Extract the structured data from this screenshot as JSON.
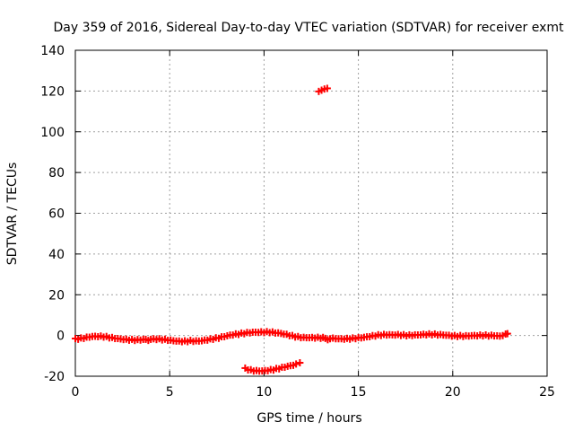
{
  "chart_data": {
    "type": "scatter",
    "title": "Day 359 of 2016, Sidereal Day-to-day VTEC variation (SDTVAR) for receiver exmt",
    "xlabel": "GPS time / hours",
    "ylabel": "SDTVAR / TECUs",
    "xlim": [
      0,
      25
    ],
    "ylim": [
      -20,
      140
    ],
    "xticks": [
      "0",
      "5",
      "10",
      "15",
      "20",
      "25"
    ],
    "yticks": [
      "-20",
      "0",
      "20",
      "40",
      "60",
      "80",
      "100",
      "120",
      "140"
    ],
    "grid": true,
    "marker": "plus",
    "color": "#ff0000",
    "series": [
      {
        "name": "main track",
        "points": [
          [
            0.0,
            -1.5
          ],
          [
            0.3,
            -1.2
          ],
          [
            0.6,
            -0.8
          ],
          [
            0.9,
            -0.5
          ],
          [
            1.2,
            -0.6
          ],
          [
            1.5,
            -0.8
          ],
          [
            1.8,
            -1.2
          ],
          [
            2.1,
            -1.5
          ],
          [
            2.4,
            -1.7
          ],
          [
            2.7,
            -1.8
          ],
          [
            3.0,
            -1.9
          ],
          [
            3.3,
            -2.0
          ],
          [
            3.6,
            -1.9
          ],
          [
            4.0,
            -1.9
          ],
          [
            4.3,
            -2.0
          ],
          [
            4.6,
            -2.2
          ],
          [
            4.9,
            -2.4
          ],
          [
            5.2,
            -2.6
          ],
          [
            5.5,
            -2.7
          ],
          [
            5.8,
            -2.6
          ],
          [
            6.1,
            -2.4
          ],
          [
            6.4,
            -2.6
          ],
          [
            6.7,
            -2.6
          ],
          [
            7.0,
            -2.3
          ],
          [
            7.3,
            -1.9
          ],
          [
            7.6,
            -1.4
          ],
          [
            7.9,
            -0.6
          ],
          [
            8.2,
            0.2
          ],
          [
            8.5,
            0.8
          ],
          [
            8.8,
            1.2
          ],
          [
            9.1,
            1.5
          ],
          [
            9.4,
            1.6
          ],
          [
            9.7,
            1.5
          ],
          [
            10.0,
            1.4
          ],
          [
            10.3,
            1.4
          ],
          [
            10.6,
            1.2
          ],
          [
            10.9,
            1.0
          ],
          [
            11.2,
            0.6
          ],
          [
            11.5,
            0.0
          ],
          [
            11.8,
            -0.5
          ],
          [
            12.1,
            -0.9
          ],
          [
            12.4,
            -1.1
          ],
          [
            12.7,
            -1.3
          ],
          [
            13.0,
            -1.4
          ],
          [
            13.5,
            -1.6
          ],
          [
            13.8,
            -1.6
          ],
          [
            14.1,
            -1.6
          ],
          [
            14.4,
            -1.4
          ],
          [
            14.7,
            -1.2
          ],
          [
            15.0,
            -1.0
          ],
          [
            15.3,
            -0.9
          ],
          [
            15.6,
            -0.6
          ],
          [
            15.9,
            -0.3
          ],
          [
            16.2,
            0.0
          ],
          [
            16.5,
            0.2
          ],
          [
            16.8,
            0.3
          ],
          [
            17.1,
            0.5
          ],
          [
            17.4,
            0.4
          ],
          [
            17.7,
            0.3
          ],
          [
            18.0,
            0.3
          ],
          [
            18.3,
            0.3
          ],
          [
            18.6,
            0.3
          ],
          [
            18.9,
            0.3
          ],
          [
            19.2,
            0.2
          ],
          [
            19.5,
            0.2
          ],
          [
            19.8,
            0.1
          ],
          [
            20.1,
            0.0
          ],
          [
            20.4,
            0.0
          ],
          [
            20.7,
            -0.1
          ],
          [
            21.0,
            -0.1
          ],
          [
            21.3,
            -0.2
          ],
          [
            21.6,
            -0.2
          ],
          [
            21.9,
            -0.3
          ],
          [
            22.2,
            -0.2
          ],
          [
            22.5,
            -0.3
          ],
          [
            22.8,
            0.7
          ],
          [
            22.9,
            0.9
          ]
        ]
      },
      {
        "name": "lower arc",
        "points": [
          [
            9.0,
            -16.0
          ],
          [
            9.3,
            -16.8
          ],
          [
            9.6,
            -17.2
          ],
          [
            9.9,
            -17.4
          ],
          [
            10.2,
            -17.3
          ],
          [
            10.5,
            -17.0
          ],
          [
            10.8,
            -16.4
          ],
          [
            11.1,
            -15.6
          ],
          [
            11.4,
            -14.8
          ],
          [
            11.7,
            -14.0
          ],
          [
            11.9,
            -13.4
          ]
        ]
      },
      {
        "name": "outliers",
        "points": [
          [
            12.9,
            119.8
          ],
          [
            13.05,
            120.4
          ],
          [
            13.2,
            121.0
          ],
          [
            13.35,
            121.3
          ]
        ]
      }
    ]
  }
}
